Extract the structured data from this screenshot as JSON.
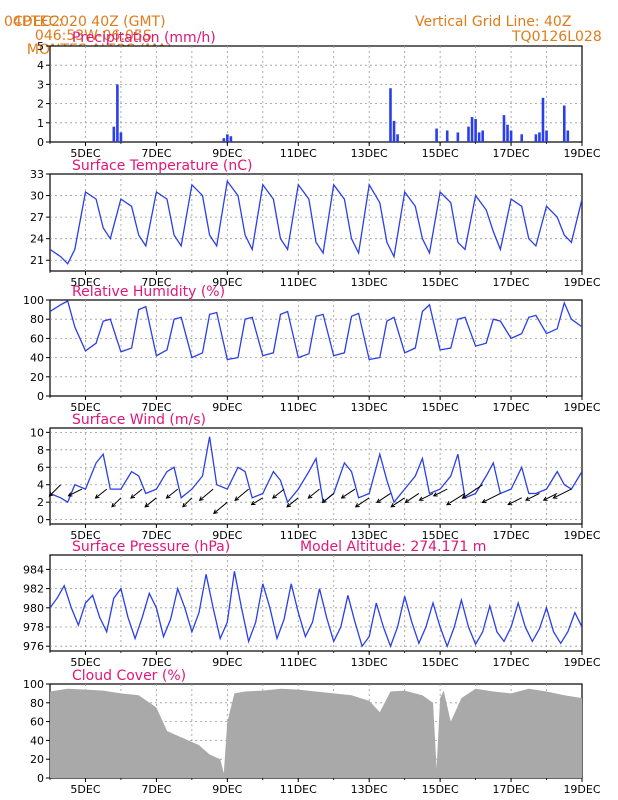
{
  "header": {
    "source": "CPTEC:",
    "coords": "046:53W-06:05S",
    "location": "MONTES ALTOS (MA)",
    "init": "04DEC2020 40Z (GMT)",
    "grid_note": "Vertical Grid Line: 40Z",
    "model_id": "TQ0126L028"
  },
  "colors": {
    "header": "#e07b1a",
    "title": "#e0167a",
    "line": "#2a3fe8",
    "cloud": "#a9a9a9"
  },
  "x_tick_labels": [
    "5DEC",
    "7DEC",
    "9DEC",
    "11DEC",
    "13DEC",
    "15DEC",
    "17DEC",
    "19DEC"
  ],
  "chart_data": [
    {
      "id": "precip",
      "type": "bar",
      "title": "Precipitation (mm/h)",
      "ylim": [
        0,
        5
      ],
      "yticks": [
        "0",
        "1",
        "2",
        "3",
        "4",
        "5"
      ],
      "x": [
        5.8,
        5.9,
        6.0,
        8.9,
        9.0,
        9.1,
        13.6,
        13.7,
        13.8,
        14.9,
        15.2,
        15.5,
        15.8,
        15.9,
        16.0,
        16.1,
        16.2,
        16.8,
        16.9,
        17.0,
        17.3,
        17.7,
        17.8,
        17.9,
        18.0,
        18.5,
        18.6
      ],
      "values": [
        0.8,
        3.0,
        0.5,
        0.2,
        0.4,
        0.3,
        2.8,
        1.1,
        0.4,
        0.7,
        0.6,
        0.5,
        0.8,
        1.3,
        1.2,
        0.5,
        0.6,
        1.4,
        0.9,
        0.6,
        0.4,
        0.4,
        0.5,
        2.3,
        0.6,
        1.9,
        0.6
      ]
    },
    {
      "id": "temp",
      "type": "line",
      "title": "Surface Temperature (nC)",
      "ylim": [
        19.5,
        33
      ],
      "yticks": [
        "21",
        "24",
        "27",
        "30",
        "33"
      ],
      "x": [
        4.0,
        4.3,
        4.5,
        4.7,
        5.0,
        5.3,
        5.5,
        5.7,
        6.0,
        6.3,
        6.5,
        6.7,
        7.0,
        7.3,
        7.5,
        7.7,
        8.0,
        8.3,
        8.5,
        8.7,
        9.0,
        9.3,
        9.5,
        9.7,
        10.0,
        10.3,
        10.5,
        10.7,
        11.0,
        11.3,
        11.5,
        11.7,
        12.0,
        12.3,
        12.5,
        12.7,
        13.0,
        13.3,
        13.5,
        13.7,
        14.0,
        14.3,
        14.5,
        14.7,
        15.0,
        15.3,
        15.5,
        15.7,
        16.0,
        16.3,
        16.5,
        16.7,
        17.0,
        17.3,
        17.5,
        17.7,
        18.0,
        18.3,
        18.5,
        18.7,
        19.0
      ],
      "values": [
        22.5,
        21.5,
        20.5,
        22.5,
        30.5,
        29.5,
        25.5,
        24.0,
        29.5,
        28.5,
        24.5,
        23.0,
        30.5,
        29.5,
        24.5,
        23.0,
        31.5,
        30.0,
        24.5,
        23.0,
        32.0,
        30.0,
        24.5,
        22.5,
        31.5,
        29.5,
        24.0,
        22.5,
        31.5,
        29.5,
        23.5,
        22.0,
        31.5,
        29.5,
        24.0,
        22.0,
        31.5,
        29.0,
        23.5,
        21.5,
        30.5,
        28.5,
        24.0,
        22.0,
        30.5,
        29.0,
        23.5,
        22.5,
        30.0,
        28.0,
        25.0,
        22.5,
        29.5,
        28.5,
        24.0,
        23.0,
        28.5,
        27.0,
        24.5,
        23.5,
        29.5
      ]
    },
    {
      "id": "rh",
      "type": "line",
      "title": "Relative Humidity (%)",
      "ylim": [
        0,
        100
      ],
      "yticks": [
        "0",
        "20",
        "40",
        "60",
        "80",
        "100"
      ],
      "x": [
        4.0,
        4.3,
        4.5,
        4.7,
        5.0,
        5.3,
        5.5,
        5.7,
        6.0,
        6.3,
        6.5,
        6.7,
        7.0,
        7.3,
        7.5,
        7.7,
        8.0,
        8.3,
        8.5,
        8.7,
        9.0,
        9.3,
        9.5,
        9.7,
        10.0,
        10.3,
        10.5,
        10.7,
        11.0,
        11.3,
        11.5,
        11.7,
        12.0,
        12.3,
        12.5,
        12.7,
        13.0,
        13.3,
        13.5,
        13.7,
        14.0,
        14.3,
        14.5,
        14.7,
        15.0,
        15.3,
        15.5,
        15.7,
        16.0,
        16.3,
        16.5,
        16.7,
        17.0,
        17.3,
        17.5,
        17.7,
        18.0,
        18.3,
        18.5,
        18.7,
        19.0
      ],
      "values": [
        88,
        95,
        99,
        72,
        47,
        55,
        78,
        80,
        46,
        50,
        90,
        93,
        42,
        48,
        80,
        82,
        40,
        45,
        85,
        87,
        38,
        40,
        80,
        82,
        42,
        45,
        85,
        88,
        40,
        44,
        83,
        85,
        42,
        45,
        83,
        86,
        38,
        40,
        78,
        82,
        45,
        50,
        88,
        95,
        48,
        50,
        80,
        82,
        52,
        55,
        80,
        78,
        60,
        65,
        82,
        84,
        65,
        70,
        97,
        80,
        72
      ]
    },
    {
      "id": "wind",
      "type": "line",
      "title": "Surface Wind (m/s)",
      "ylim": [
        -0.5,
        10.5
      ],
      "yticks": [
        "0",
        "2",
        "4",
        "6",
        "8",
        "10"
      ],
      "x": [
        4.0,
        4.3,
        4.5,
        4.7,
        5.0,
        5.3,
        5.5,
        5.7,
        6.0,
        6.3,
        6.5,
        6.7,
        7.0,
        7.3,
        7.5,
        7.7,
        8.0,
        8.3,
        8.5,
        8.7,
        9.0,
        9.3,
        9.5,
        9.7,
        10.0,
        10.3,
        10.5,
        10.7,
        11.0,
        11.3,
        11.5,
        11.7,
        12.0,
        12.3,
        12.5,
        12.7,
        13.0,
        13.3,
        13.5,
        13.7,
        14.0,
        14.3,
        14.5,
        14.7,
        15.0,
        15.3,
        15.5,
        15.7,
        16.0,
        16.3,
        16.5,
        16.7,
        17.0,
        17.3,
        17.5,
        17.7,
        18.0,
        18.3,
        18.5,
        18.7,
        19.0
      ],
      "values": [
        3.0,
        2.5,
        2.0,
        4.0,
        3.5,
        6.5,
        7.5,
        3.5,
        3.5,
        5.5,
        5.0,
        3.0,
        3.5,
        5.5,
        6.0,
        2.5,
        3.5,
        5.0,
        9.5,
        4.0,
        3.5,
        6.0,
        5.5,
        2.5,
        3.0,
        5.5,
        4.5,
        2.0,
        3.5,
        5.5,
        7.0,
        2.0,
        3.0,
        6.5,
        5.5,
        2.5,
        3.0,
        7.5,
        4.5,
        2.0,
        3.5,
        5.0,
        7.0,
        3.0,
        3.5,
        5.0,
        7.5,
        2.5,
        3.0,
        5.0,
        6.5,
        3.0,
        3.5,
        6.0,
        3.0,
        3.0,
        3.5,
        5.5,
        4.0,
        3.5,
        5.5
      ],
      "arrows_x": [
        4.3,
        4.9,
        5.6,
        6.0,
        6.6,
        7.0,
        7.6,
        8.0,
        8.6,
        9.0,
        9.6,
        10.0,
        10.6,
        11.0,
        11.6,
        12.0,
        12.6,
        13.0,
        13.6,
        14.0,
        14.4,
        14.8,
        15.2,
        15.7,
        16.2,
        16.7,
        17.3,
        17.8,
        18.3,
        18.7
      ],
      "arrows_y": [
        4.0,
        3.5,
        3.5,
        2.5,
        3.5,
        2.5,
        3.5,
        2.5,
        3.5,
        2.0,
        3.5,
        2.5,
        3.5,
        2.5,
        3.5,
        3.0,
        3.5,
        2.5,
        3.0,
        2.5,
        3.0,
        3.0,
        3.5,
        3.0,
        4.0,
        3.0,
        2.5,
        3.0,
        3.0,
        3.5
      ],
      "arrows_u": [
        -2.5,
        -3.0,
        -2.5,
        -2.0,
        -2.5,
        -2.5,
        -2.5,
        -2.0,
        -3.0,
        -3.0,
        -3.0,
        -2.5,
        -2.5,
        -2.5,
        -2.5,
        -2.5,
        -3.0,
        -3.0,
        -3.0,
        -3.0,
        -3.0,
        -3.0,
        -3.0,
        -4.0,
        -4.5,
        -4.0,
        -3.0,
        -3.0,
        -3.0,
        -4.0
      ],
      "arrows_v": [
        -2.5,
        -1.5,
        -2.0,
        -2.0,
        -2.0,
        -2.0,
        -2.0,
        -2.0,
        -2.5,
        -2.5,
        -2.5,
        -1.5,
        -2.0,
        -2.0,
        -2.0,
        -2.0,
        -2.0,
        -2.0,
        -2.0,
        -2.0,
        -2.0,
        -1.5,
        -1.5,
        -2.5,
        -3.0,
        -2.0,
        -1.5,
        -1.5,
        -1.5,
        -2.0
      ]
    },
    {
      "id": "pres",
      "type": "line",
      "title": "Surface Pressure (hPa)",
      "subtitle": "Model Altitude: 274.171 m",
      "ylim": [
        975.5,
        985.5
      ],
      "yticks": [
        "976",
        "978",
        "980",
        "982",
        "984"
      ],
      "x": [
        4.0,
        4.2,
        4.4,
        4.6,
        4.8,
        5.0,
        5.2,
        5.4,
        5.6,
        5.8,
        6.0,
        6.2,
        6.4,
        6.6,
        6.8,
        7.0,
        7.2,
        7.4,
        7.6,
        7.8,
        8.0,
        8.2,
        8.4,
        8.6,
        8.8,
        9.0,
        9.2,
        9.4,
        9.6,
        9.8,
        10.0,
        10.2,
        10.4,
        10.6,
        10.8,
        11.0,
        11.2,
        11.4,
        11.6,
        11.8,
        12.0,
        12.2,
        12.4,
        12.6,
        12.8,
        13.0,
        13.2,
        13.4,
        13.6,
        13.8,
        14.0,
        14.2,
        14.4,
        14.6,
        14.8,
        15.0,
        15.2,
        15.4,
        15.6,
        15.8,
        16.0,
        16.2,
        16.4,
        16.6,
        16.8,
        17.0,
        17.2,
        17.4,
        17.6,
        17.8,
        18.0,
        18.2,
        18.4,
        18.6,
        18.8,
        19.0
      ],
      "values": [
        980,
        981,
        982.3,
        980,
        978.2,
        980.5,
        981.3,
        979,
        977.5,
        981,
        982,
        979,
        976.8,
        979,
        981.5,
        980,
        977,
        978.8,
        982,
        980,
        977.5,
        979.5,
        983.5,
        980,
        976.8,
        978.5,
        983.8,
        980,
        976.5,
        978.5,
        982.5,
        980,
        976.8,
        978.8,
        982.5,
        979.5,
        977,
        978.5,
        982,
        979,
        976.5,
        978,
        981.3,
        978.5,
        976,
        977,
        980.5,
        978,
        976,
        978,
        981.2,
        978.5,
        976.3,
        978,
        980.5,
        978,
        976,
        978,
        980.8,
        978,
        976.2,
        977.5,
        980.2,
        977.5,
        976.5,
        978,
        980.5,
        978,
        976.5,
        977.8,
        980,
        977.5,
        976.3,
        977.5,
        979.5,
        978
      ]
    },
    {
      "id": "cloud",
      "type": "area",
      "title": "Cloud Cover (%)",
      "ylim": [
        0,
        100
      ],
      "yticks": [
        "0",
        "20",
        "40",
        "60",
        "80",
        "100"
      ],
      "x": [
        4.0,
        4.5,
        5.0,
        5.5,
        6.0,
        6.5,
        7.0,
        7.3,
        7.6,
        7.9,
        8.2,
        8.5,
        8.8,
        8.9,
        9.0,
        9.2,
        9.5,
        10.0,
        10.5,
        11.0,
        11.5,
        12.0,
        12.5,
        13.0,
        13.3,
        13.6,
        14.0,
        14.5,
        14.8,
        14.9,
        15.0,
        15.1,
        15.3,
        15.6,
        16.0,
        16.5,
        17.0,
        17.5,
        18.0,
        18.5,
        19.0
      ],
      "values": [
        92,
        95,
        94,
        93,
        90,
        88,
        75,
        50,
        45,
        40,
        35,
        25,
        20,
        5,
        60,
        90,
        92,
        93,
        95,
        94,
        92,
        90,
        88,
        82,
        70,
        92,
        93,
        88,
        80,
        10,
        85,
        93,
        60,
        85,
        95,
        92,
        90,
        95,
        92,
        88,
        85
      ]
    }
  ]
}
